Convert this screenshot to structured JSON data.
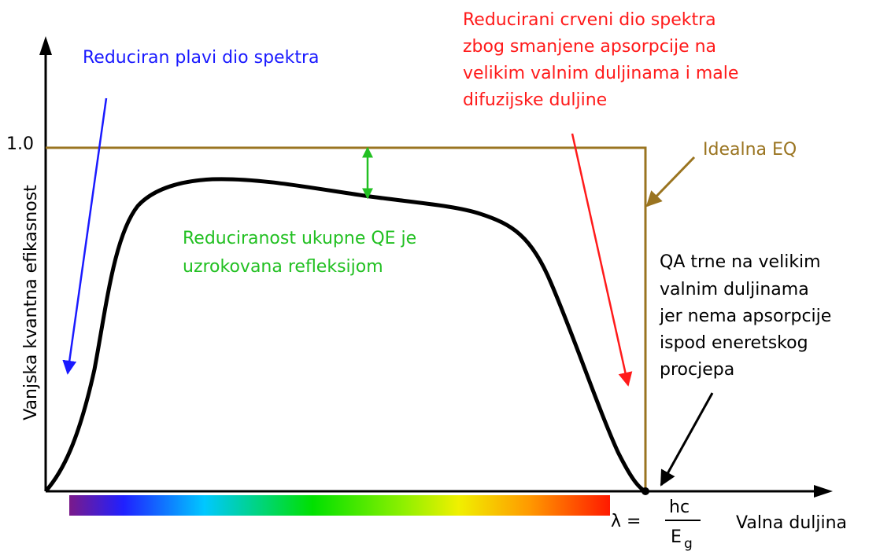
{
  "axes": {
    "y_label": "Vanjska kvantna efikasnost",
    "y_tick": "1.0",
    "x_label": "Valna duljina"
  },
  "annotations": {
    "blue": "Reduciran plavi dio spektra",
    "red": [
      "Reducirani crveni dio spektra",
      "zbog smanjene apsorpcije na",
      "velikim valnim duljinama i male",
      "difuzijske duljine"
    ],
    "ideal": "Idealna EQ",
    "green": [
      "Reduciranost ukupne QE je",
      "uzrokovana refleksijom"
    ],
    "black": [
      "QA trne na velikim",
      "valnim duljinama",
      "jer nema apsorpcije",
      "ispod eneretskog",
      "procjepa"
    ]
  },
  "formula": {
    "lhs": "λ =",
    "numerator": "hc",
    "denominator": "E",
    "subscript": "g"
  }
}
